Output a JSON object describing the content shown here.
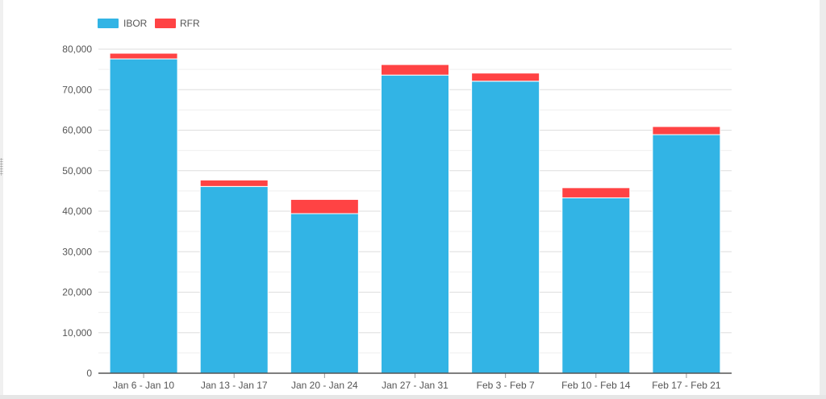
{
  "colors": {
    "IBOR": "#32b4e5",
    "RFR": "#ff4344",
    "grid": "#dedede",
    "minor_grid": "#efefef",
    "axis": "#555555",
    "text": "#555555"
  },
  "chart_data": {
    "type": "bar",
    "stacked": true,
    "categories": [
      "Jan 6 - Jan 10",
      "Jan 13 - Jan 17",
      "Jan 20 - Jan 24",
      "Jan 27 - Jan 31",
      "Feb 3 - Feb 7",
      "Feb 10 - Feb 14",
      "Feb 17 - Feb 21"
    ],
    "series": [
      {
        "name": "IBOR",
        "values": [
          77600,
          46100,
          39400,
          73600,
          72100,
          43300,
          58900
        ]
      },
      {
        "name": "RFR",
        "values": [
          1400,
          1600,
          3500,
          2600,
          2000,
          2500,
          2000
        ]
      }
    ],
    "ylim": [
      0,
      80000
    ],
    "yticks": [
      0,
      10000,
      20000,
      30000,
      40000,
      50000,
      60000,
      70000,
      80000
    ],
    "ytick_labels": [
      "0",
      "10,000",
      "20,000",
      "30,000",
      "40,000",
      "50,000",
      "60,000",
      "70,000",
      "80,000"
    ],
    "grid": true,
    "legend_position": "top-left",
    "title": "",
    "xlabel": "",
    "ylabel": ""
  }
}
